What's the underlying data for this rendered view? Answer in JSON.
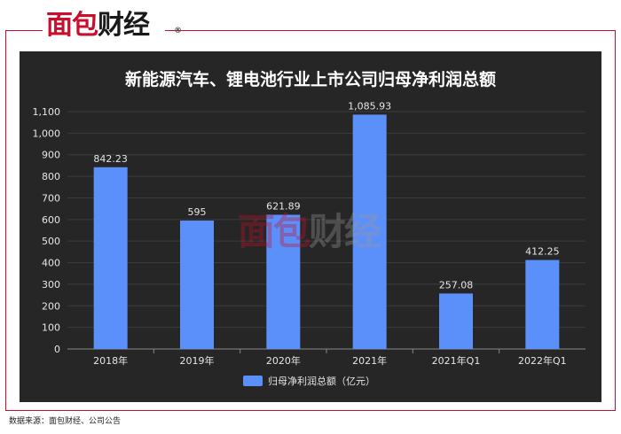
{
  "brand": {
    "part1": "面包",
    "part2": "财经",
    "registered": "®"
  },
  "source": "数据来源：面包财经、公司公告",
  "colors": {
    "bar": "#5b8ff9",
    "panel": "#262626",
    "brand_red": "#c8102e"
  },
  "chart_data": {
    "type": "bar",
    "title": "新能源汽车、锂电池行业上市公司归母净利润总额",
    "categories": [
      "2018年",
      "2019年",
      "2020年",
      "2021年",
      "2021年Q1",
      "2022年Q1"
    ],
    "series": [
      {
        "name": "归母净利润总额（亿元）",
        "values": [
          842.23,
          595,
          621.89,
          1085.93,
          257.08,
          412.25
        ]
      }
    ],
    "data_labels": [
      "842.23",
      "595",
      "621.89",
      "1,085.93",
      "257.08",
      "412.25"
    ],
    "ylim": [
      0,
      1100
    ],
    "yticks": [
      0,
      100,
      200,
      300,
      400,
      500,
      600,
      700,
      800,
      900,
      1000,
      1100
    ],
    "ytick_labels": [
      "0",
      "100",
      "200",
      "300",
      "400",
      "500",
      "600",
      "700",
      "800",
      "900",
      "1,000",
      "1,100"
    ],
    "grid": true,
    "legend": "bottom-center"
  }
}
